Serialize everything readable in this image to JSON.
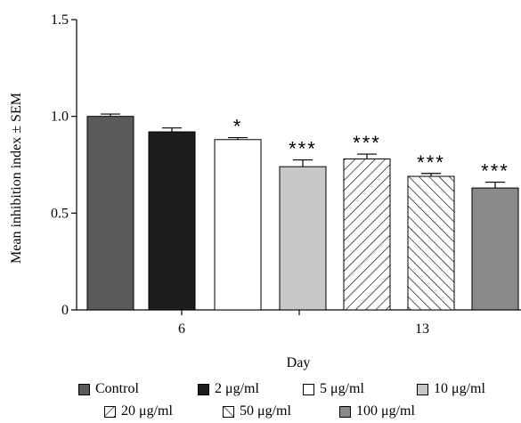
{
  "chart_data": {
    "type": "bar",
    "title": "",
    "xlabel": "Day",
    "ylabel": "Mean inhibition index ± SEM",
    "ylim": [
      0,
      1.5
    ],
    "yticks": [
      {
        "value": 0,
        "label": "0"
      },
      {
        "value": 0.5,
        "label": "0.5"
      },
      {
        "value": 1.0,
        "label": "1.0"
      },
      {
        "value": 1.5,
        "label": "1.5"
      }
    ],
    "xtick_labels": [
      "6",
      "13"
    ],
    "categories": [
      "Control",
      "2 μg/ml",
      "5 μg/ml",
      "10 μg/ml",
      "20 μg/ml",
      "50 μg/ml",
      "100 μg/ml"
    ],
    "values": [
      1.0,
      0.92,
      0.88,
      0.74,
      0.78,
      0.69,
      0.63
    ],
    "sem": [
      0.012,
      0.02,
      0.01,
      0.035,
      0.025,
      0.015,
      0.03
    ],
    "significance": [
      "",
      "",
      "*",
      "***",
      "***",
      "***",
      "***"
    ],
    "grid": false,
    "legend_position": "bottom"
  },
  "legend": {
    "items": [
      {
        "label": "Control",
        "style": "solid",
        "color": "#5a5a5a"
      },
      {
        "label": "2 μg/ml",
        "style": "solid",
        "color": "#1c1c1c"
      },
      {
        "label": "5 μg/ml",
        "style": "solid",
        "color": "#ffffff"
      },
      {
        "label": "10 μg/ml",
        "style": "solid",
        "color": "#c8c8c8"
      },
      {
        "label": "20 μg/ml",
        "style": "hatch-right",
        "color": "#ffffff"
      },
      {
        "label": "50 μg/ml",
        "style": "hatch-left",
        "color": "#ffffff"
      },
      {
        "label": "100 μg/ml",
        "style": "solid",
        "color": "#8a8a8a"
      }
    ]
  }
}
